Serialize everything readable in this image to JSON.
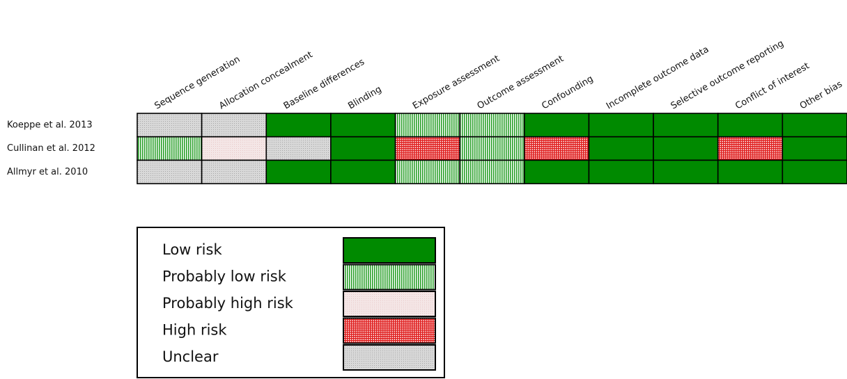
{
  "columns": [
    "Sequence generation",
    "Allocation concealment",
    "Baseline differences",
    "Blinding",
    "Exposure assessment",
    "Outcome assessment",
    "Confounding",
    "Incomplete outcome data",
    "Selective outcome reporting",
    "Conflict of interest",
    "Other bias"
  ],
  "rows": [
    {
      "label": "Koeppe et al. 2013",
      "ratings": [
        "Unclear",
        "Unclear",
        "Low risk",
        "Low risk",
        "Probably low risk",
        "Probably low risk",
        "Low risk",
        "Low risk",
        "Low risk",
        "Low risk",
        "Low risk"
      ]
    },
    {
      "label": "Cullinan et al. 2012",
      "ratings": [
        "Probably low risk",
        "Probably high risk",
        "Unclear",
        "Low risk",
        "High risk",
        "Probably low risk",
        "High risk",
        "Low risk",
        "Low risk",
        "High risk",
        "Low risk"
      ]
    },
    {
      "label": "Allmyr et al. 2010",
      "ratings": [
        "Unclear",
        "Unclear",
        "Low risk",
        "Low risk",
        "Probably low risk",
        "Probably low risk",
        "Low risk",
        "Low risk",
        "Low risk",
        "Low risk",
        "Low risk"
      ]
    }
  ],
  "legend": [
    {
      "label": "Low risk",
      "color": "#008a00",
      "pattern": "solid"
    },
    {
      "label": "Probably low risk",
      "color": "#2aa02a",
      "pattern": "vlines"
    },
    {
      "label": "Probably high risk",
      "color": "#e8c8c8",
      "pattern": "dots"
    },
    {
      "label": "High risk",
      "color": "#e02020",
      "pattern": "grid"
    },
    {
      "label": "Unclear",
      "color": "#a8a8a8",
      "pattern": "dots"
    }
  ]
}
